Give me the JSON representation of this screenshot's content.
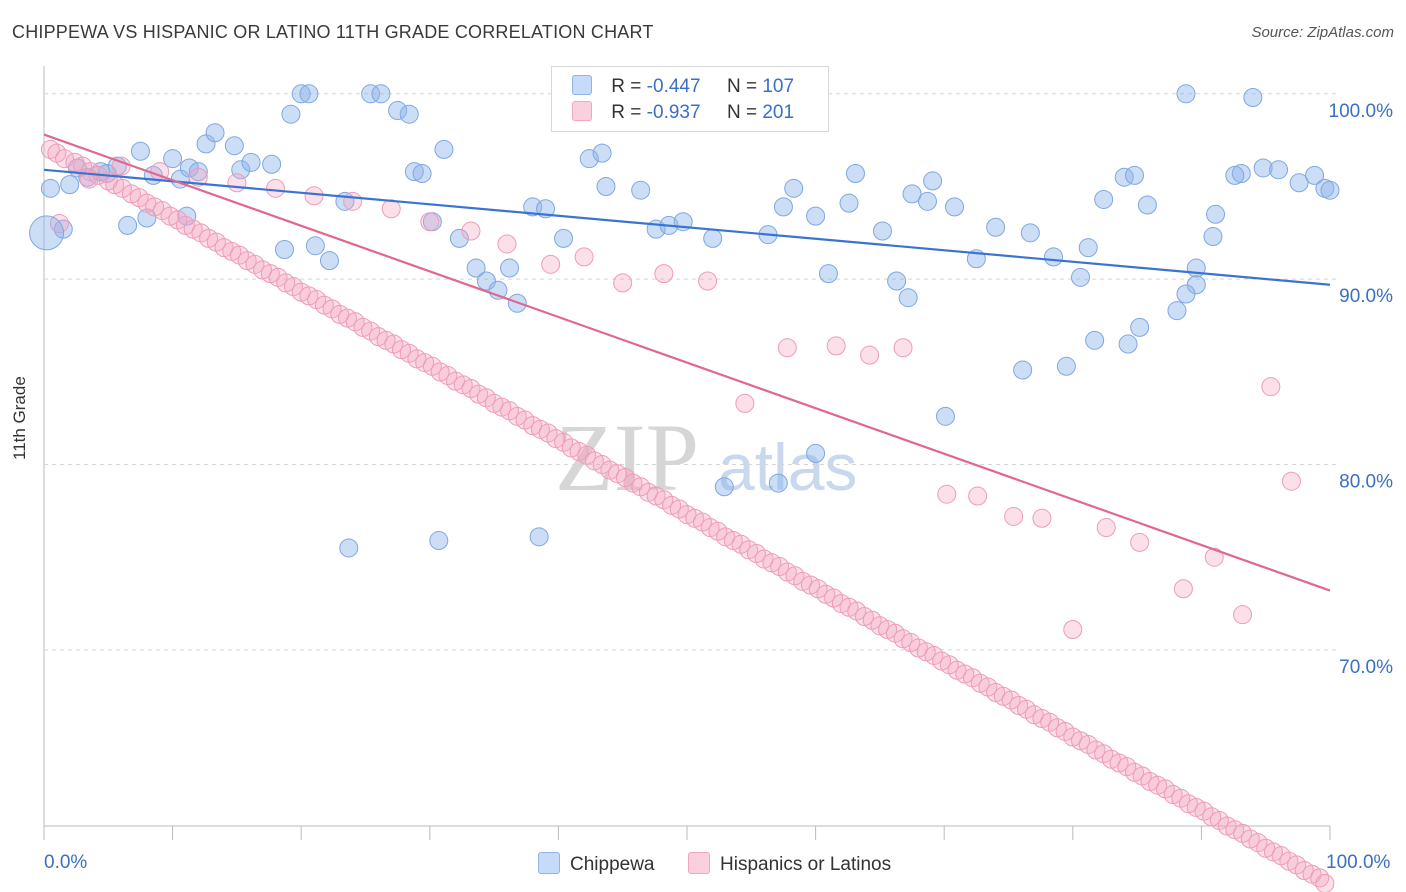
{
  "title": "CHIPPEWA VS HISPANIC OR LATINO 11TH GRADE CORRELATION CHART",
  "source": "Source: ZipAtlas.com",
  "watermark": {
    "zip": "ZIP",
    "atlas": "atlas"
  },
  "legend_top": {
    "rows": [
      {
        "r_label": "R =",
        "r_value": "-0.447",
        "n_label": "N =",
        "n_value": "107"
      },
      {
        "r_label": "R =",
        "r_value": "-0.937",
        "n_label": "N =",
        "n_value": "201"
      }
    ]
  },
  "chart_data": {
    "type": "scatter",
    "title": "CHIPPEWA VS HISPANIC OR LATINO 11TH GRADE CORRELATION CHART",
    "xlabel": "",
    "ylabel": "11th Grade",
    "xlim": [
      0,
      100
    ],
    "ylim": [
      60.5,
      101.5
    ],
    "x_tick_labels": [
      "0.0%",
      "100.0%"
    ],
    "y_ticks": [
      70,
      80,
      90,
      100
    ],
    "y_tick_labels": [
      "70.0%",
      "80.0%",
      "90.0%",
      "100.0%"
    ],
    "grid": "horizontal dashed",
    "legend_placement": "bottom-center",
    "colors": {
      "chippewa": "#8fb4ea",
      "chippewa_line": "#3a74d0",
      "hispanic": "#f4a6c0",
      "hispanic_line": "#e0688f",
      "tick": "#3a6fc4"
    },
    "series": [
      {
        "name": "Chippewa",
        "r": -0.447,
        "n": 107,
        "trend": {
          "x": [
            0,
            100
          ],
          "y": [
            95.9,
            89.7
          ]
        },
        "x": [
          0.5,
          1.5,
          2.0,
          2.6,
          3.4,
          4.4,
          4.9,
          5.7,
          6.5,
          7.5,
          8.5,
          8.0,
          10.0,
          10.6,
          11.1,
          11.3,
          12.0,
          12.6,
          13.3,
          14.8,
          15.3,
          16.1,
          17.7,
          18.7,
          19.2,
          20.0,
          20.6,
          21.1,
          22.2,
          23.4,
          25.4,
          26.2,
          27.5,
          28.4,
          28.8,
          29.4,
          30.2,
          31.1,
          32.3,
          33.6,
          34.4,
          35.3,
          36.2,
          36.8,
          38.0,
          39.0,
          40.4,
          42.4,
          43.4,
          43.7,
          46.4,
          47.6,
          48.6,
          49.7,
          52.0,
          56.3,
          57.5,
          58.3,
          60.0,
          61.0,
          62.6,
          63.1,
          65.2,
          66.3,
          67.2,
          67.5,
          68.7,
          69.1,
          70.8,
          72.5,
          74.0,
          76.7,
          78.5,
          80.6,
          81.2,
          82.4,
          84.0,
          84.8,
          85.8,
          88.8,
          89.6,
          94.8,
          96.0,
          97.6,
          98.8,
          99.6,
          100.0,
          94.0,
          93.1,
          92.6,
          91.1,
          90.9,
          89.6,
          88.8,
          88.1,
          85.2,
          84.3,
          81.7,
          79.5,
          76.1,
          70.1,
          60.0,
          57.1,
          52.9,
          38.5,
          30.7,
          23.7
        ],
        "y": [
          94.9,
          92.7,
          95.1,
          96.0,
          95.5,
          95.8,
          95.7,
          96.1,
          92.9,
          96.9,
          95.6,
          93.3,
          96.5,
          95.4,
          93.4,
          96.0,
          95.8,
          97.3,
          97.9,
          97.2,
          95.9,
          96.3,
          96.2,
          91.6,
          98.9,
          100.0,
          100.0,
          91.8,
          91.0,
          94.2,
          100.0,
          100.0,
          99.1,
          98.9,
          95.8,
          95.7,
          93.1,
          97.0,
          92.2,
          90.6,
          89.9,
          89.4,
          90.6,
          88.7,
          93.9,
          93.8,
          92.2,
          96.5,
          96.8,
          95.0,
          94.8,
          92.7,
          92.9,
          93.1,
          92.2,
          92.4,
          93.9,
          94.9,
          93.4,
          90.3,
          94.1,
          95.7,
          92.6,
          89.9,
          89.0,
          94.6,
          94.2,
          95.3,
          93.9,
          91.1,
          92.8,
          92.5,
          91.2,
          90.1,
          91.7,
          94.3,
          95.5,
          95.6,
          94.0,
          100.0,
          90.6,
          96.0,
          95.9,
          95.2,
          95.6,
          94.9,
          94.8,
          99.8,
          95.7,
          95.6,
          93.5,
          92.3,
          89.7,
          89.2,
          88.3,
          87.4,
          86.5,
          86.7,
          85.3,
          85.1,
          82.6,
          80.6,
          79.0,
          78.8,
          76.1,
          75.9,
          75.5
        ],
        "z_note": ""
      },
      {
        "name": "Hispanics or Latinos",
        "r": -0.937,
        "n": 201,
        "trend": {
          "x": [
            0,
            100
          ],
          "y": [
            97.8,
            73.2
          ]
        },
        "x": [
          0.5,
          1.0,
          1.6,
          2.4,
          3.0,
          3.6,
          4.2,
          5.0,
          5.5,
          6.1,
          6.8,
          7.4,
          8.0,
          8.6,
          9.2,
          9.8,
          10.4,
          11.0,
          11.6,
          12.2,
          12.8,
          13.4,
          14.0,
          14.6,
          15.2,
          15.8,
          16.4,
          17.0,
          17.6,
          18.2,
          18.8,
          19.4,
          20.0,
          20.6,
          21.2,
          21.8,
          22.4,
          23.0,
          23.6,
          24.2,
          24.8,
          25.4,
          26.0,
          26.6,
          27.2,
          27.8,
          28.4,
          29.0,
          29.6,
          30.2,
          30.8,
          31.4,
          32.0,
          32.6,
          33.2,
          33.8,
          34.4,
          35.0,
          35.6,
          36.2,
          36.8,
          37.4,
          38.0,
          38.6,
          39.2,
          39.8,
          40.4,
          41.0,
          41.6,
          42.2,
          42.8,
          43.4,
          44.0,
          44.6,
          45.2,
          45.8,
          46.4,
          47.0,
          47.6,
          48.2,
          48.8,
          49.4,
          50.0,
          50.6,
          51.2,
          51.8,
          52.4,
          53.0,
          53.6,
          54.2,
          54.8,
          55.4,
          56.0,
          56.6,
          57.2,
          57.8,
          58.4,
          59.0,
          59.6,
          60.2,
          60.8,
          61.4,
          62.0,
          62.6,
          63.2,
          63.8,
          64.4,
          65.0,
          65.6,
          66.2,
          66.8,
          67.4,
          68.0,
          68.6,
          69.2,
          69.8,
          70.4,
          71.0,
          71.6,
          72.2,
          72.8,
          73.4,
          74.0,
          74.6,
          75.2,
          75.8,
          76.4,
          77.0,
          77.6,
          78.2,
          78.8,
          79.4,
          80.0,
          80.6,
          81.2,
          81.8,
          82.4,
          83.0,
          83.6,
          84.2,
          84.8,
          85.4,
          86.0,
          86.6,
          87.2,
          87.8,
          88.4,
          89.0,
          89.6,
          90.2,
          90.8,
          91.4,
          92.0,
          92.6,
          93.2,
          93.8,
          94.4,
          95.0,
          95.6,
          96.2,
          96.8,
          97.4,
          98.0,
          98.6,
          99.2,
          99.6,
          97.0,
          95.4,
          93.2,
          91.0,
          88.6,
          85.2,
          82.6,
          80.0,
          77.6,
          75.4,
          72.6,
          70.2,
          66.8,
          64.2,
          61.6,
          57.8,
          54.5,
          51.6,
          48.2,
          45.0,
          42.0,
          39.4,
          36.0,
          33.2,
          30.0,
          27.0,
          24.0,
          21.0,
          18.0,
          15.0,
          12.0,
          9.0,
          6.0,
          3.5,
          1.2
        ],
        "y": [
          97.0,
          96.8,
          96.5,
          96.3,
          96.1,
          95.8,
          95.6,
          95.3,
          95.1,
          94.9,
          94.6,
          94.4,
          94.1,
          93.9,
          93.7,
          93.4,
          93.2,
          92.9,
          92.7,
          92.5,
          92.2,
          92.0,
          91.7,
          91.5,
          91.3,
          91.0,
          90.8,
          90.5,
          90.3,
          90.1,
          89.8,
          89.6,
          89.3,
          89.1,
          88.9,
          88.6,
          88.4,
          88.1,
          87.9,
          87.7,
          87.4,
          87.2,
          86.9,
          86.7,
          86.5,
          86.2,
          86.0,
          85.7,
          85.5,
          85.3,
          85.0,
          84.8,
          84.5,
          84.3,
          84.1,
          83.8,
          83.6,
          83.3,
          83.1,
          82.9,
          82.6,
          82.4,
          82.1,
          81.9,
          81.7,
          81.4,
          81.2,
          80.9,
          80.7,
          80.5,
          80.2,
          80.0,
          79.7,
          79.5,
          79.3,
          79.0,
          78.8,
          78.5,
          78.3,
          78.1,
          77.8,
          77.6,
          77.3,
          77.1,
          76.9,
          76.6,
          76.4,
          76.1,
          75.9,
          75.7,
          75.4,
          75.2,
          74.9,
          74.7,
          74.5,
          74.2,
          74.0,
          73.7,
          73.5,
          73.3,
          73.0,
          72.8,
          72.5,
          72.3,
          72.1,
          71.8,
          71.6,
          71.3,
          71.1,
          70.9,
          70.6,
          70.4,
          70.1,
          69.9,
          69.7,
          69.4,
          69.2,
          68.9,
          68.7,
          68.5,
          68.2,
          68.0,
          67.7,
          67.5,
          67.3,
          67.0,
          66.8,
          66.5,
          66.3,
          66.1,
          65.8,
          65.6,
          65.3,
          65.1,
          64.9,
          64.6,
          64.4,
          64.1,
          63.9,
          63.7,
          63.4,
          63.2,
          62.9,
          62.7,
          62.5,
          62.2,
          62.0,
          61.7,
          61.5,
          61.3,
          61.0,
          60.8,
          60.5,
          60.3,
          60.1,
          59.8,
          59.6,
          59.3,
          59.1,
          58.9,
          58.6,
          58.4,
          58.1,
          57.9,
          57.7,
          57.4,
          79.1,
          84.2,
          71.9,
          75.0,
          73.3,
          75.8,
          76.6,
          71.1,
          77.1,
          77.2,
          78.3,
          78.4,
          86.3,
          85.9,
          86.4,
          86.3,
          83.3,
          89.9,
          90.3,
          89.8,
          91.2,
          90.8,
          91.9,
          92.6,
          93.1,
          93.8,
          94.2,
          94.5,
          94.9,
          95.2,
          95.5,
          95.8,
          96.1,
          95.4,
          93.0
        ],
        "z_note": ""
      }
    ]
  }
}
